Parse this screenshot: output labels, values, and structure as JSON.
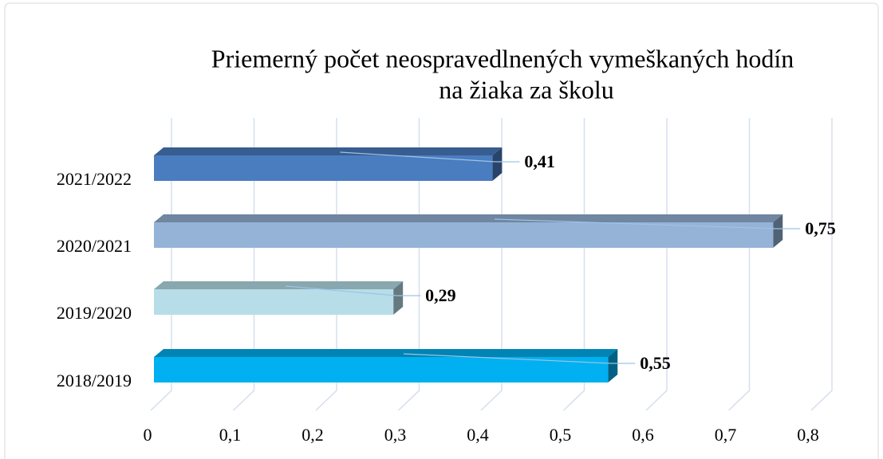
{
  "chart_data": {
    "type": "bar3d_horizontal",
    "title": [
      "Priemerný počet neospravedlnených vymeškaných hodín",
      "na žiaka za školu"
    ],
    "categories": [
      "2021/2022",
      "2020/2021",
      "2019/2020",
      "2018/2019"
    ],
    "values": [
      0.41,
      0.75,
      0.29,
      0.55
    ],
    "value_labels": [
      "0,41",
      "0,75",
      "0,29",
      "0,55"
    ],
    "colors": [
      "#4a7cc0",
      "#95b3d7",
      "#b7dee8",
      "#00b0f0"
    ],
    "xlim": [
      0,
      0.8
    ],
    "xticks": [
      0,
      {
        "value": 0.1,
        "label": "0,1"
      },
      {
        "value": 0.2,
        "label": "0,2"
      },
      {
        "value": 0.3,
        "label": "0,3"
      },
      {
        "value": 0.4,
        "label": "0,4"
      },
      {
        "value": 0.5,
        "label": "0,5"
      },
      {
        "value": 0.6,
        "label": "0,6"
      },
      {
        "value": 0.7,
        "label": "0,7"
      },
      {
        "value": 0.8,
        "label": "0,8"
      }
    ],
    "grid": true
  }
}
